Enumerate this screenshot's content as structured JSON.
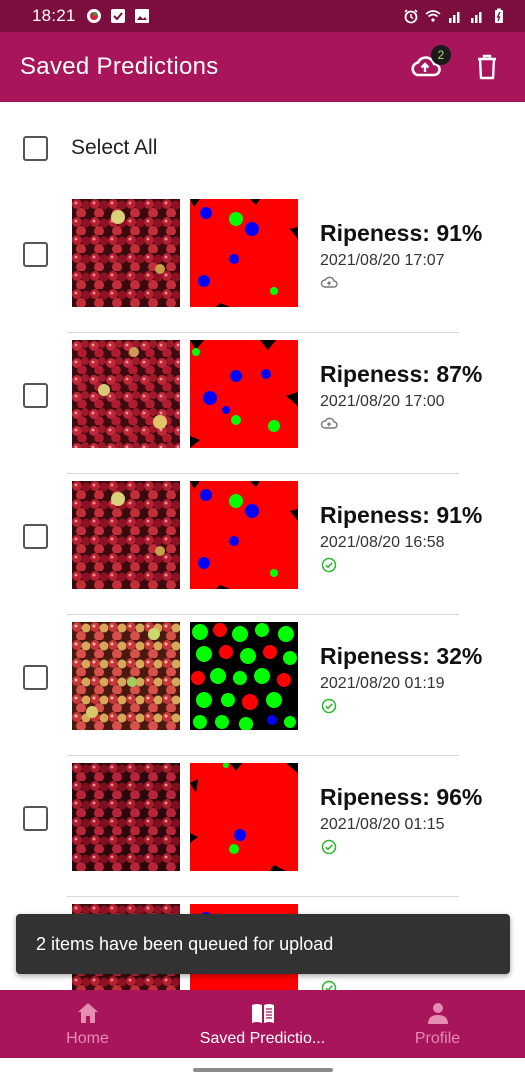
{
  "status_bar": {
    "time": "18:21"
  },
  "app_bar": {
    "title": "Saved Predictions",
    "upload_badge": "2"
  },
  "select_all": {
    "label": "Select All"
  },
  "items": [
    {
      "ripeness": "Ripeness: 91%",
      "timestamp": "2021/08/20 17:07",
      "status": "cloud-upload-pending-icon"
    },
    {
      "ripeness": "Ripeness: 87%",
      "timestamp": "2021/08/20 17:00",
      "status": "cloud-upload-pending-icon"
    },
    {
      "ripeness": "Ripeness: 91%",
      "timestamp": "2021/08/20 16:58",
      "status": "uploaded-check-icon"
    },
    {
      "ripeness": "Ripeness: 32%",
      "timestamp": "2021/08/20 01:19",
      "status": "uploaded-check-icon"
    },
    {
      "ripeness": "Ripeness: 96%",
      "timestamp": "2021/08/20 01:15",
      "status": "uploaded-check-icon"
    },
    {
      "ripeness": "",
      "timestamp": "",
      "status": "uploaded-check-icon"
    }
  ],
  "snackbar": {
    "message": "2 items have been queued for upload"
  },
  "bottom_nav": {
    "home": "Home",
    "saved": "Saved Predictio...",
    "profile": "Profile"
  },
  "colors": {
    "status_bar": "#7b0d3f",
    "primary": "#a8155a",
    "nav_inactive": "#e58cb3",
    "ripe": "#ff0000",
    "unripe": "#00ff00",
    "overripe": "#0000ff",
    "uploaded": "#2bb52b"
  }
}
